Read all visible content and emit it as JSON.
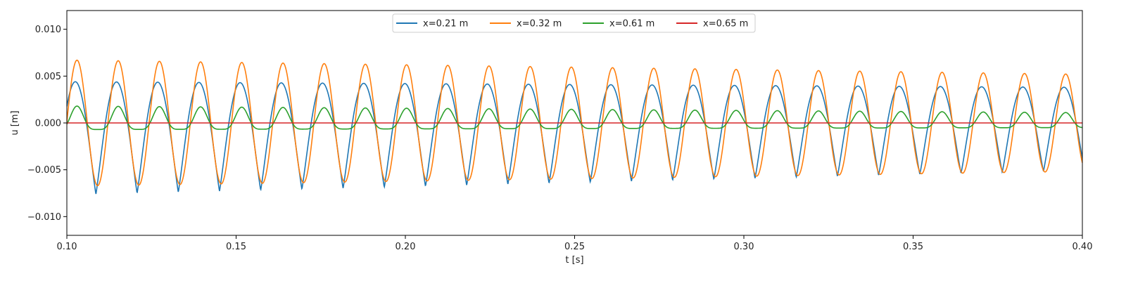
{
  "chart_data": {
    "type": "line",
    "xlabel": "t [s]",
    "ylabel": "u [m]",
    "xlim": [
      0.1,
      0.4
    ],
    "ylim": [
      -0.012,
      0.012
    ],
    "xticks": [
      0.1,
      0.15,
      0.2,
      0.25,
      0.3,
      0.35,
      0.4
    ],
    "xtick_labels": [
      "0.10",
      "0.15",
      "0.20",
      "0.25",
      "0.30",
      "0.35",
      "0.40"
    ],
    "yticks": [
      0.01,
      0.005,
      0.0,
      -0.005,
      -0.01
    ],
    "ytick_labels": [
      "0.010",
      "0.005",
      "0.000",
      "−0.005",
      "−0.010"
    ],
    "grid": false,
    "legend_position": "top-center",
    "period_s": 0.01217,
    "series": [
      {
        "name": "x=0.21 m",
        "color": "#1f77b4",
        "peaks": [
          [
            0.1025,
            0.0044
          ],
          [
            0.4,
            0.0038
          ]
        ],
        "troughs": [
          [
            0.109,
            -0.0076
          ],
          [
            0.395,
            -0.0051
          ]
        ]
      },
      {
        "name": "x=0.32 m",
        "color": "#ff7f0e",
        "peaks": [
          [
            0.103,
            0.0067
          ],
          [
            0.399,
            0.0052
          ]
        ],
        "troughs": [
          [
            0.109,
            -0.0067
          ],
          [
            0.395,
            -0.0052
          ]
        ]
      },
      {
        "name": "x=0.61 m",
        "color": "#2ca02c",
        "peaks": [
          [
            0.103,
            0.0018
          ],
          [
            0.399,
            0.0011
          ]
        ],
        "troughs": [
          [
            0.109,
            -0.0007
          ],
          [
            0.395,
            -0.0005
          ]
        ]
      },
      {
        "name": "x=0.65 m",
        "color": "#d62728",
        "peaks": [
          [
            0.1,
            0.0
          ],
          [
            0.4,
            0.0
          ]
        ],
        "troughs": [
          [
            0.1,
            0.0
          ],
          [
            0.4,
            0.0
          ]
        ]
      }
    ]
  }
}
